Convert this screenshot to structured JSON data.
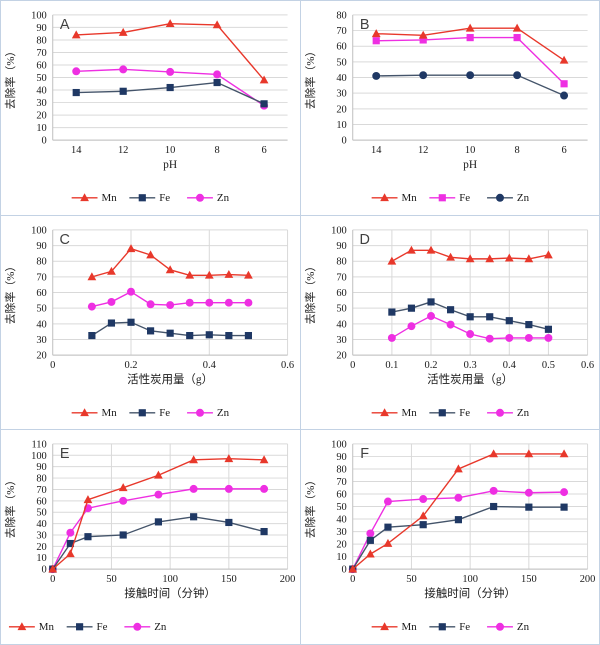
{
  "figure_title": "",
  "colors": {
    "red": "#e8382b",
    "magenta": "#ee2fe2",
    "navy": "#1f3864",
    "navy_line": "#44546a",
    "gridline": "#d9d9d9",
    "axis_line": "#bfbfbf",
    "text": "#1a1a1a",
    "panel_letter": "#404040",
    "panel_border": "#c3d2e4"
  },
  "chart_data": [
    {
      "type": "line",
      "panel_label": "A",
      "ylabel": "去除率（%）",
      "xlabel": "pH",
      "ylim": [
        0,
        100
      ],
      "ytick_step": 10,
      "axis_type": "category",
      "categories": [
        "14",
        "12",
        "10",
        "8",
        "6"
      ],
      "vgrid": false,
      "grid": true,
      "legend_position": "bottom-center",
      "legend": [
        "Mn",
        "Fe",
        "Zn"
      ],
      "series": [
        {
          "name": "Zn",
          "marker": "circle",
          "color": "#ee2fe2",
          "line_color": "#ee2fe2",
          "values": [
            55,
            56.5,
            54.5,
            52.5,
            27.5
          ]
        },
        {
          "name": "Fe",
          "marker": "square",
          "color": "#1f3864",
          "line_color": "#44546a",
          "values": [
            38,
            39,
            42,
            46,
            29
          ]
        },
        {
          "name": "Mn",
          "marker": "triangle",
          "color": "#e8382b",
          "line_color": "#e8382b",
          "values": [
            84,
            86,
            93,
            92,
            48
          ]
        }
      ],
      "legend_series": [
        {
          "name": "Mn",
          "marker": "triangle",
          "color": "#e8382b",
          "line_color": "#e8382b"
        },
        {
          "name": "Fe",
          "marker": "square",
          "color": "#1f3864",
          "line_color": "#44546a"
        },
        {
          "name": "Zn",
          "marker": "circle",
          "color": "#ee2fe2",
          "line_color": "#ee2fe2"
        }
      ]
    },
    {
      "type": "line",
      "panel_label": "B",
      "ylabel": "去除率（%）",
      "xlabel": "pH",
      "ylim": [
        0,
        80
      ],
      "ytick_step": 10,
      "axis_type": "category",
      "categories": [
        "14",
        "12",
        "10",
        "8",
        "6"
      ],
      "vgrid": false,
      "grid": true,
      "legend_position": "bottom-center",
      "legend": [
        "Mn",
        "Fe",
        "Zn"
      ],
      "series": [
        {
          "name": "Zn",
          "marker": "circle",
          "color": "#1f3864",
          "line_color": "#44546a",
          "values": [
            41,
            41.5,
            41.5,
            41.5,
            28.5
          ]
        },
        {
          "name": "Fe",
          "marker": "square",
          "color": "#ee2fe2",
          "line_color": "#ee2fe2",
          "values": [
            63.5,
            64,
            65.5,
            65.5,
            36
          ]
        },
        {
          "name": "Mn",
          "marker": "triangle",
          "color": "#e8382b",
          "line_color": "#e8382b",
          "values": [
            68,
            67,
            71.5,
            71.5,
            51
          ]
        }
      ],
      "legend_series": [
        {
          "name": "Mn",
          "marker": "triangle",
          "color": "#e8382b",
          "line_color": "#e8382b"
        },
        {
          "name": "Fe",
          "marker": "square",
          "color": "#ee2fe2",
          "line_color": "#ee2fe2"
        },
        {
          "name": "Zn",
          "marker": "circle",
          "color": "#1f3864",
          "line_color": "#44546a"
        }
      ]
    },
    {
      "type": "line",
      "panel_label": "C",
      "ylabel": "去除率（%）",
      "xlabel": "活性炭用量（g）",
      "ylim": [
        20,
        100
      ],
      "ytick_step": 10,
      "axis_type": "linear",
      "xlim": [
        0,
        0.6
      ],
      "xticks": [
        "0",
        "0.2",
        "0.4",
        "0.6"
      ],
      "xtick_values": [
        0,
        0.2,
        0.4,
        0.6
      ],
      "x": [
        0.1,
        0.15,
        0.2,
        0.25,
        0.3,
        0.35,
        0.4,
        0.45,
        0.5
      ],
      "vgrid": true,
      "grid": true,
      "legend_position": "bottom-center",
      "legend": [
        "Mn",
        "Fe",
        "Zn"
      ],
      "series": [
        {
          "name": "Zn",
          "marker": "circle",
          "color": "#ee2fe2",
          "line_color": "#ee2fe2",
          "values": [
            51,
            54,
            60.5,
            52.5,
            52,
            53.5,
            53.5,
            53.5,
            53.5
          ]
        },
        {
          "name": "Fe",
          "marker": "square",
          "color": "#1f3864",
          "line_color": "#44546a",
          "values": [
            32.5,
            40.5,
            41,
            35.5,
            34,
            32.5,
            33,
            32.5,
            32.5
          ]
        },
        {
          "name": "Mn",
          "marker": "triangle",
          "color": "#e8382b",
          "line_color": "#e8382b",
          "values": [
            70,
            73.5,
            88,
            84,
            74.5,
            71,
            71,
            71.5,
            71
          ]
        }
      ],
      "legend_series": [
        {
          "name": "Mn",
          "marker": "triangle",
          "color": "#e8382b",
          "line_color": "#e8382b"
        },
        {
          "name": "Fe",
          "marker": "square",
          "color": "#1f3864",
          "line_color": "#44546a"
        },
        {
          "name": "Zn",
          "marker": "circle",
          "color": "#ee2fe2",
          "line_color": "#ee2fe2"
        }
      ]
    },
    {
      "type": "line",
      "panel_label": "D",
      "ylabel": "去除率（%）",
      "xlabel": "活性炭用量（g）",
      "ylim": [
        20,
        100
      ],
      "ytick_step": 10,
      "axis_type": "linear",
      "xlim": [
        0,
        0.6
      ],
      "xticks": [
        "0",
        "0.1",
        "0.2",
        "0.3",
        "0.4",
        "0.5",
        "0.6"
      ],
      "xtick_values": [
        0,
        0.1,
        0.2,
        0.3,
        0.4,
        0.5,
        0.6
      ],
      "x": [
        0.1,
        0.15,
        0.2,
        0.25,
        0.3,
        0.35,
        0.4,
        0.45,
        0.5
      ],
      "vgrid": true,
      "grid": true,
      "legend_position": "bottom-center",
      "legend": [
        "Mn",
        "Fe",
        "Zn"
      ],
      "series": [
        {
          "name": "Zn",
          "marker": "circle",
          "color": "#ee2fe2",
          "line_color": "#ee2fe2",
          "values": [
            31,
            38.5,
            45,
            39.5,
            33.5,
            30.5,
            31,
            31,
            31
          ]
        },
        {
          "name": "Fe",
          "marker": "square",
          "color": "#1f3864",
          "line_color": "#44546a",
          "values": [
            47.5,
            50,
            54,
            49,
            44.5,
            44.5,
            42,
            39.5,
            36.5
          ]
        },
        {
          "name": "Mn",
          "marker": "triangle",
          "color": "#e8382b",
          "line_color": "#e8382b",
          "values": [
            80,
            87,
            87,
            82.5,
            81.5,
            81.5,
            82,
            81.5,
            84
          ]
        }
      ],
      "legend_series": [
        {
          "name": "Mn",
          "marker": "triangle",
          "color": "#e8382b",
          "line_color": "#e8382b"
        },
        {
          "name": "Fe",
          "marker": "square",
          "color": "#1f3864",
          "line_color": "#44546a"
        },
        {
          "name": "Zn",
          "marker": "circle",
          "color": "#ee2fe2",
          "line_color": "#ee2fe2"
        }
      ]
    },
    {
      "type": "line",
      "panel_label": "E",
      "ylabel": "去除率（%）",
      "xlabel": "接触时间（分钟）",
      "ylim": [
        0,
        110
      ],
      "ytick_step": 10,
      "axis_type": "linear",
      "xlim": [
        0,
        200
      ],
      "xticks": [
        "0",
        "50",
        "100",
        "150",
        "200"
      ],
      "xtick_values": [
        0,
        50,
        100,
        150,
        200
      ],
      "x": [
        0,
        15,
        30,
        60,
        90,
        120,
        150,
        180
      ],
      "vgrid": true,
      "grid": true,
      "legend_position": "bottom-left",
      "legend": [
        "Mn",
        "Fe",
        "Zn"
      ],
      "series": [
        {
          "name": "Zn",
          "marker": "circle",
          "color": "#ee2fe2",
          "line_color": "#ee2fe2",
          "values": [
            0,
            32,
            53.5,
            60,
            65.5,
            70.5,
            70.5,
            70.5
          ]
        },
        {
          "name": "Fe",
          "marker": "square",
          "color": "#1f3864",
          "line_color": "#44546a",
          "values": [
            0,
            22.5,
            28.5,
            30,
            41.5,
            46,
            41,
            33
          ]
        },
        {
          "name": "Mn",
          "marker": "triangle",
          "color": "#e8382b",
          "line_color": "#e8382b",
          "values": [
            0,
            13.5,
            61,
            71.5,
            82.5,
            96,
            97,
            96
          ]
        }
      ],
      "legend_series": [
        {
          "name": "Mn",
          "marker": "triangle",
          "color": "#e8382b",
          "line_color": "#e8382b"
        },
        {
          "name": "Fe",
          "marker": "square",
          "color": "#1f3864",
          "line_color": "#44546a"
        },
        {
          "name": "Zn",
          "marker": "circle",
          "color": "#ee2fe2",
          "line_color": "#ee2fe2"
        }
      ]
    },
    {
      "type": "line",
      "panel_label": "F",
      "ylabel": "去除率（%）",
      "xlabel": "接触时间（分钟）",
      "ylim": [
        0,
        100
      ],
      "ytick_step": 10,
      "axis_type": "linear",
      "xlim": [
        0,
        200
      ],
      "xticks": [
        "0",
        "50",
        "100",
        "150",
        "200"
      ],
      "xtick_values": [
        0,
        50,
        100,
        150,
        200
      ],
      "x": [
        0,
        15,
        30,
        60,
        90,
        120,
        150,
        180
      ],
      "vgrid": true,
      "grid": true,
      "legend_position": "bottom-center",
      "legend": [
        "Mn",
        "Fe",
        "Zn"
      ],
      "series": [
        {
          "name": "Zn",
          "marker": "circle",
          "color": "#ee2fe2",
          "line_color": "#ee2fe2",
          "values": [
            0,
            28.5,
            54,
            56,
            57,
            62.5,
            61,
            61.5
          ]
        },
        {
          "name": "Fe",
          "marker": "square",
          "color": "#1f3864",
          "line_color": "#44546a",
          "values": [
            0,
            23,
            33.5,
            35.5,
            39.5,
            50,
            49.5,
            49.5
          ]
        },
        {
          "name": "Mn",
          "marker": "triangle",
          "color": "#e8382b",
          "line_color": "#e8382b",
          "values": [
            0,
            12,
            20.5,
            42.5,
            80,
            92,
            92,
            92
          ]
        }
      ],
      "legend_series": [
        {
          "name": "Mn",
          "marker": "triangle",
          "color": "#e8382b",
          "line_color": "#e8382b"
        },
        {
          "name": "Fe",
          "marker": "square",
          "color": "#1f3864",
          "line_color": "#44546a"
        },
        {
          "name": "Zn",
          "marker": "circle",
          "color": "#ee2fe2",
          "line_color": "#ee2fe2"
        }
      ]
    }
  ]
}
